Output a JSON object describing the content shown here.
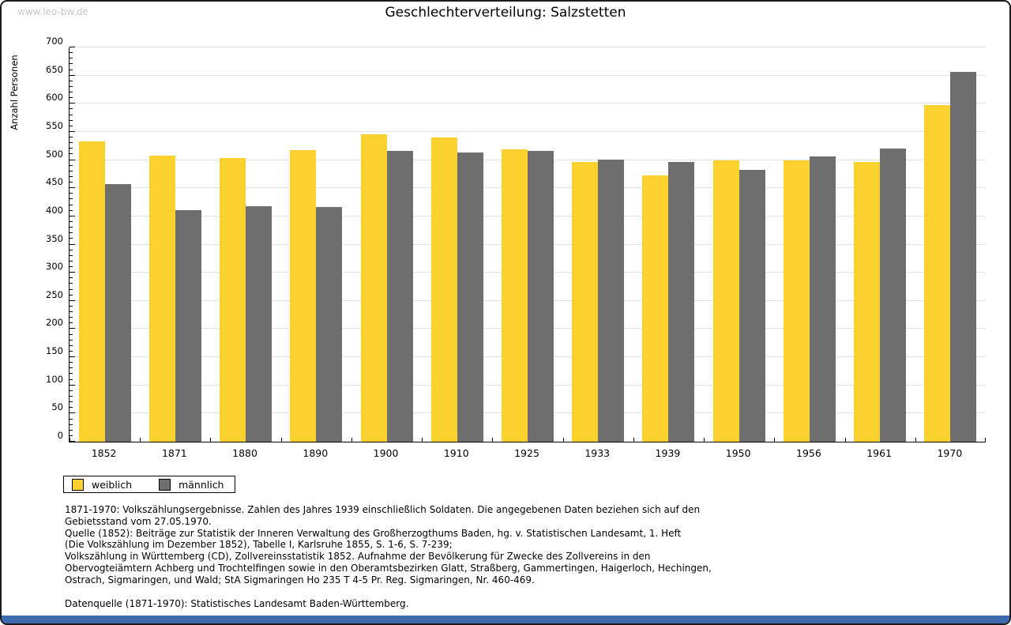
{
  "watermark": "www.leo-bw.de",
  "chart_data": {
    "type": "bar",
    "title": "Geschlechterverteilung: Salzstetten",
    "xlabel": "",
    "ylabel": "Anzahl Personen",
    "ylim": [
      0,
      700
    ],
    "ytick_step": 50,
    "yminor_step": 10,
    "grid": true,
    "legend_position": "bottom-left",
    "categories": [
      "1852",
      "1871",
      "1880",
      "1890",
      "1900",
      "1910",
      "1925",
      "1933",
      "1939",
      "1950",
      "1956",
      "1961",
      "1970"
    ],
    "series": [
      {
        "name": "weiblich",
        "color": "#FBD22D",
        "values": [
          533,
          508,
          503,
          518,
          546,
          540,
          519,
          497,
          473,
          499,
          499,
          497,
          598
        ]
      },
      {
        "name": "männlich",
        "color": "#6E6E6E",
        "values": [
          458,
          411,
          418,
          417,
          516,
          514,
          516,
          501,
          496,
          483,
          507,
          520,
          657
        ]
      }
    ]
  },
  "footer": {
    "lines": [
      "1871-1970: Volkszählungsergebnisse. Zahlen des Jahres 1939 einschließlich Soldaten. Die angegebenen Daten beziehen sich auf den",
      "Gebietsstand vom 27.05.1970.",
      "Quelle (1852): Beiträge zur Statistik der Inneren Verwaltung des Großherzogthums Baden, hg. v. Statistischen Landesamt, 1. Heft",
      "(Die Volkszählung im Dezember 1852), Tabelle I, Karlsruhe 1855, S. 1-6, S. 7-239;",
      "Volkszählung in Württemberg (CD), Zollvereinsstatistik 1852. Aufnahme der Bevölkerung für Zwecke des Zollvereins in den",
      "Obervogteiämtern Achberg und Trochtelfingen sowie in den Oberamtsbezirken Glatt, Straßberg, Gammertingen, Haigerloch, Hechingen,",
      "Ostrach, Sigmaringen, und Wald; StA Sigmaringen Ho 235 T 4-5 Pr. Reg. Sigmaringen, Nr. 460-469."
    ],
    "datasource": "Datenquelle (1871-1970): Statistisches Landesamt Baden-Württemberg."
  },
  "colors": {
    "bottom_bar": "#3D6BAE",
    "grid": "#E2E2E2",
    "axis": "#000000",
    "watermark": "#C8C8C8",
    "weiblich": "#FBD22D",
    "maennlich": "#6E6E6E"
  }
}
